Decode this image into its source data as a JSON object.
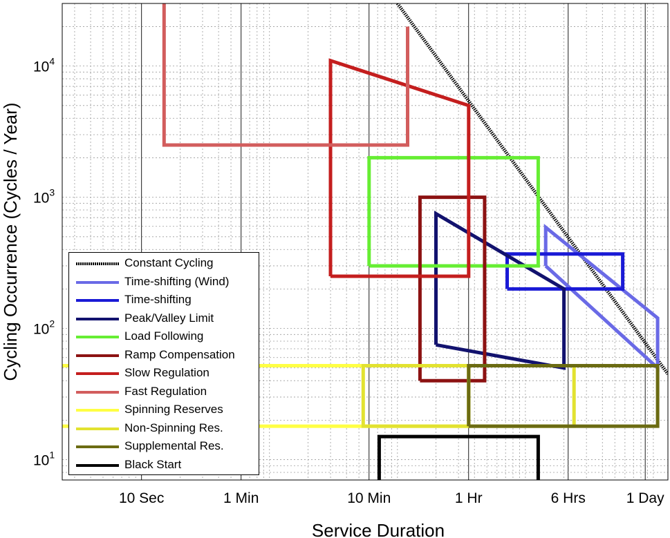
{
  "chart_data": {
    "type": "line",
    "xlabel": "Service Duration",
    "ylabel": "Cycling Occurrence (Cycles / Year)",
    "x_scale": "log",
    "y_scale": "log",
    "x_unit": "seconds",
    "xlim": [
      2.4,
      130000
    ],
    "ylim": [
      7,
      30000
    ],
    "grid": true,
    "legend_position": "bottom-left",
    "x_ticks": [
      {
        "value": 10,
        "label": "10 Sec"
      },
      {
        "value": 60,
        "label": "1 Min"
      },
      {
        "value": 600,
        "label": "10 Min"
      },
      {
        "value": 3600,
        "label": "1 Hr"
      },
      {
        "value": 21600,
        "label": "6 Hrs"
      },
      {
        "value": 86400,
        "label": "1 Day"
      }
    ],
    "y_ticks": [
      {
        "value": 10,
        "base": "10",
        "exp": "1"
      },
      {
        "value": 100,
        "base": "10",
        "exp": "2"
      },
      {
        "value": 1000,
        "base": "10",
        "exp": "3"
      },
      {
        "value": 10000,
        "base": "10",
        "exp": "4"
      }
    ],
    "series": [
      {
        "name": "Constant Cycling",
        "color": "#000000",
        "style": "dotted",
        "x": [
          1000,
          130000
        ],
        "y": [
          30000,
          45
        ]
      },
      {
        "name": "Time-shifting (Wind)",
        "color": "#6a6ae6",
        "x": [
          14400,
          14400,
          108000,
          108000,
          14400
        ],
        "y": [
          300,
          590,
          120,
          50,
          300
        ]
      },
      {
        "name": "Time-shifting",
        "color": "#1a1ad6",
        "x": [
          7200,
          7200,
          57600,
          57600,
          7200
        ],
        "y": [
          200,
          370,
          370,
          200,
          200
        ]
      },
      {
        "name": "Peak/Valley Limit",
        "color": "#12126e",
        "x": [
          2000,
          2000,
          20000,
          20000,
          2000
        ],
        "y": [
          75,
          750,
          200,
          50,
          75
        ]
      },
      {
        "name": "Load Following",
        "color": "#66ee33",
        "x": [
          600,
          600,
          12600,
          12600,
          600
        ],
        "y": [
          300,
          2000,
          2000,
          300,
          300
        ]
      },
      {
        "name": "Ramp Compensation",
        "color": "#8c1212",
        "x": [
          1500,
          1500,
          4800,
          4800,
          1500
        ],
        "y": [
          40,
          1000,
          1000,
          40,
          40
        ]
      },
      {
        "name": "Slow Regulation",
        "color": "#c41e1e",
        "x": [
          300,
          300,
          3600,
          3600,
          300
        ],
        "y": [
          250,
          11000,
          5000,
          250,
          250
        ]
      },
      {
        "name": "Fast Regulation",
        "color": "#d25d5d",
        "x": [
          15,
          15,
          1200,
          1200
        ],
        "y": [
          30000,
          2500,
          2500,
          20000
        ]
      },
      {
        "name": "Spinning Reserves",
        "color": "#ffff44",
        "x": [
          2.4,
          3600,
          3600,
          2.4
        ],
        "y": [
          52,
          52,
          18,
          18
        ]
      },
      {
        "name": "Non-Spinning Res.",
        "color": "#e2e230",
        "x": [
          3600,
          540,
          540,
          3600,
          3600,
          24000,
          24000,
          3600
        ],
        "y": [
          52,
          52,
          18,
          18,
          52,
          52,
          18,
          18
        ]
      },
      {
        "name": "Supplemental Res.",
        "color": "#6b6b12",
        "x": [
          3600,
          3600,
          108000,
          108000,
          3600
        ],
        "y": [
          18,
          52,
          52,
          18,
          18
        ]
      },
      {
        "name": "Black Start",
        "color": "#000000",
        "x": [
          720,
          720,
          12600,
          12600
        ],
        "y": [
          7,
          15,
          15,
          7
        ]
      }
    ]
  }
}
